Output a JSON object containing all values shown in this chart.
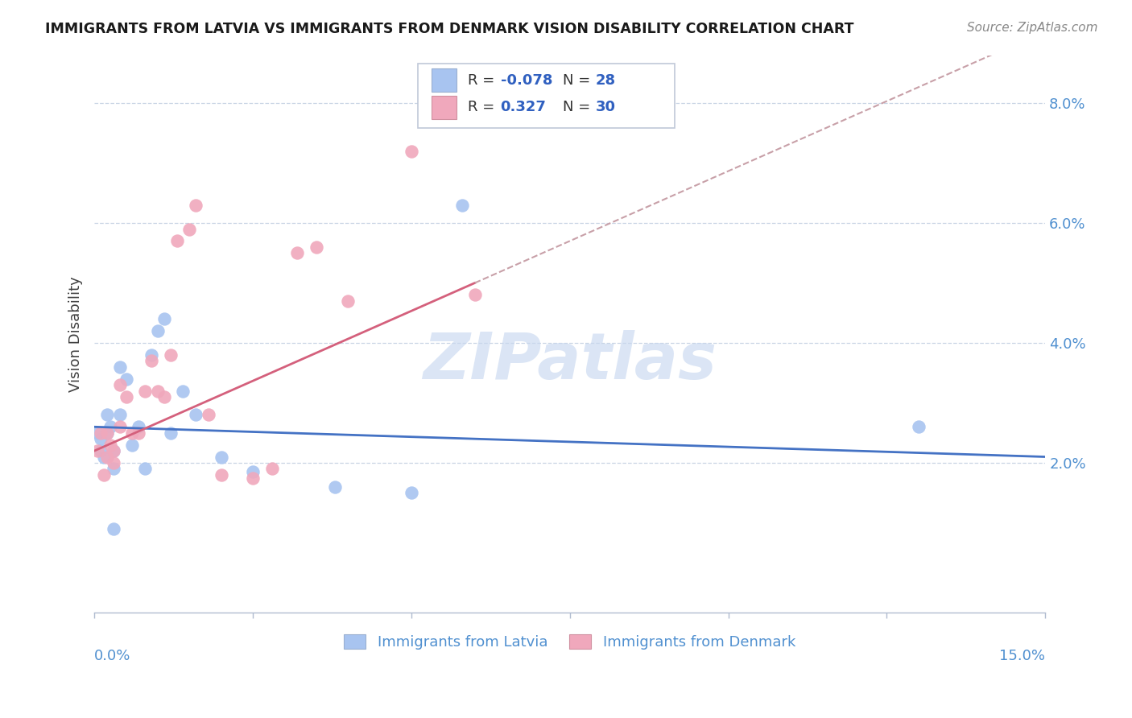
{
  "title": "IMMIGRANTS FROM LATVIA VS IMMIGRANTS FROM DENMARK VISION DISABILITY CORRELATION CHART",
  "source": "Source: ZipAtlas.com",
  "ylabel": "Vision Disability",
  "y_ticks": [
    0.0,
    0.02,
    0.04,
    0.06,
    0.08
  ],
  "y_tick_labels": [
    "",
    "2.0%",
    "4.0%",
    "6.0%",
    "8.0%"
  ],
  "xlim": [
    0.0,
    0.15
  ],
  "ylim": [
    -0.005,
    0.088
  ],
  "legend_r_latvia": "-0.078",
  "legend_n_latvia": "28",
  "legend_r_denmark": "0.327",
  "legend_n_denmark": "30",
  "latvia_color": "#a8c4f0",
  "denmark_color": "#f0a8bc",
  "trend_latvia_color": "#4472c4",
  "trend_denmark_color": "#d4607c",
  "trend_denmark_dash_color": "#c8a0a8",
  "watermark_color": "#c8d8f0",
  "latvia_x": [
    0.0005,
    0.001,
    0.001,
    0.0015,
    0.002,
    0.002,
    0.0025,
    0.003,
    0.003,
    0.004,
    0.004,
    0.005,
    0.006,
    0.007,
    0.008,
    0.009,
    0.01,
    0.011,
    0.012,
    0.014,
    0.016,
    0.02,
    0.025,
    0.038,
    0.05,
    0.058,
    0.13,
    0.003
  ],
  "latvia_y": [
    0.025,
    0.024,
    0.022,
    0.021,
    0.025,
    0.028,
    0.026,
    0.022,
    0.019,
    0.036,
    0.028,
    0.034,
    0.023,
    0.026,
    0.019,
    0.038,
    0.042,
    0.044,
    0.025,
    0.032,
    0.028,
    0.021,
    0.0185,
    0.016,
    0.015,
    0.063,
    0.026,
    0.009
  ],
  "denmark_x": [
    0.0005,
    0.001,
    0.0015,
    0.002,
    0.002,
    0.0025,
    0.003,
    0.003,
    0.004,
    0.004,
    0.005,
    0.006,
    0.007,
    0.008,
    0.009,
    0.01,
    0.011,
    0.012,
    0.013,
    0.015,
    0.016,
    0.018,
    0.02,
    0.025,
    0.028,
    0.032,
    0.035,
    0.04,
    0.05,
    0.06
  ],
  "denmark_y": [
    0.022,
    0.025,
    0.018,
    0.021,
    0.025,
    0.023,
    0.022,
    0.02,
    0.033,
    0.026,
    0.031,
    0.025,
    0.025,
    0.032,
    0.037,
    0.032,
    0.031,
    0.038,
    0.057,
    0.059,
    0.063,
    0.028,
    0.018,
    0.0175,
    0.019,
    0.055,
    0.056,
    0.047,
    0.072,
    0.048
  ]
}
